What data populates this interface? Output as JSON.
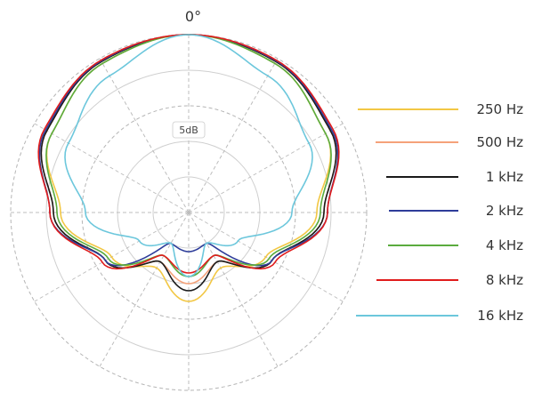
{
  "chart_data": {
    "type": "polar",
    "angle_label": "0°",
    "ring_label": "5dB",
    "rlim": [
      -25,
      0
    ],
    "ring_step_db": 5,
    "angle_step_deg": 30,
    "grid": true,
    "legend_position": "right",
    "theta_deg": [
      0,
      30,
      60,
      90,
      120,
      150,
      180
    ],
    "series": [
      {
        "name": "250 Hz",
        "color": "#f2c744",
        "r_db": [
          0,
          -0.8,
          -2.8,
          -7,
          -12.5,
          -16,
          -12.5
        ]
      },
      {
        "name": "500 Hz",
        "color": "#f5a27a",
        "r_db": [
          0,
          -0.5,
          -2.0,
          -6,
          -11.5,
          -17,
          -15
        ]
      },
      {
        "name": "1 kHz",
        "color": "#1a1a1a",
        "r_db": [
          0,
          -0.5,
          -2.0,
          -6,
          -11.5,
          -17,
          -14
        ]
      },
      {
        "name": "2 kHz",
        "color": "#2e3d9a",
        "r_db": [
          0,
          -0.4,
          -1.8,
          -5.5,
          -11.5,
          -20,
          -19.5
        ]
      },
      {
        "name": "4 kHz",
        "color": "#5aab3e",
        "r_db": [
          0,
          -0.8,
          -2.8,
          -6.5,
          -12,
          -18,
          -16
        ]
      },
      {
        "name": "8 kHz",
        "color": "#e01c1c",
        "r_db": [
          0,
          -0.3,
          -1.6,
          -5.5,
          -11,
          -18,
          -16.5
        ]
      },
      {
        "name": "16 kHz",
        "color": "#6cc7dc",
        "r_db": [
          0,
          -2.8,
          -5.5,
          -10.5,
          -17,
          -20,
          -16
        ]
      }
    ]
  }
}
